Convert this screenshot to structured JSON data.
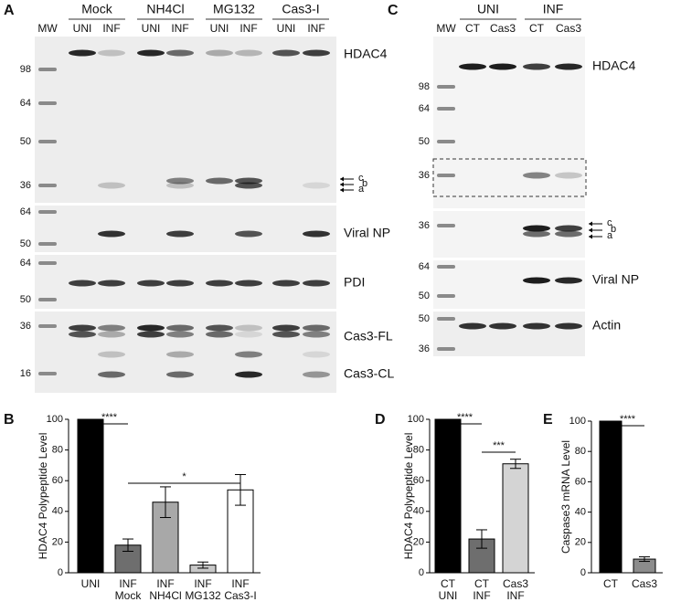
{
  "panel_a": {
    "letter": "A",
    "mw_label": "MW",
    "groups": [
      "Mock",
      "NH4Cl",
      "MG132",
      "Cas3-I"
    ],
    "lanes": [
      "UNI",
      "INF",
      "UNI",
      "INF",
      "UNI",
      "INF",
      "UNI",
      "INF"
    ],
    "blots": [
      {
        "label": "HDAC4",
        "markers": [
          "98",
          "64",
          "50",
          "36"
        ]
      },
      {
        "label": "Viral NP",
        "markers": [
          "64",
          "50"
        ]
      },
      {
        "label": "PDI",
        "markers": [
          "64",
          "50"
        ]
      },
      {
        "label": "Cas3-FL",
        "markers": [
          "36"
        ]
      },
      {
        "label": "Cas3-CL",
        "markers": [
          "16"
        ]
      }
    ],
    "band_letters": [
      "c",
      "b",
      "a"
    ]
  },
  "panel_c": {
    "letter": "C",
    "mw_label": "MW",
    "groups": [
      "UNI",
      "INF"
    ],
    "lanes": [
      "CT",
      "Cas3",
      "CT",
      "Cas3"
    ],
    "blots": [
      {
        "label": "HDAC4",
        "markers": [
          "98",
          "64",
          "50",
          "36"
        ]
      },
      {
        "markers": [
          "36"
        ]
      },
      {
        "label": "Viral NP",
        "markers": [
          "64",
          "50"
        ]
      },
      {
        "label": "Actin",
        "markers": [
          "50",
          "36"
        ]
      }
    ],
    "band_letters": [
      "c",
      "b",
      "a"
    ]
  },
  "chart_data": [
    {
      "type": "bar",
      "panel": "B",
      "y_label": "HDAC4 Polypeptide Level",
      "categories": [
        [
          "UNI"
        ],
        [
          "INF",
          "Mock"
        ],
        [
          "INF",
          "NH4Cl"
        ],
        [
          "INF",
          "MG132"
        ],
        [
          "INF",
          "Cas3-I"
        ]
      ],
      "values": [
        100,
        18,
        46,
        5,
        54
      ],
      "errors": [
        0,
        4,
        10,
        2,
        10
      ],
      "colors": [
        "#000000",
        "#6e6e6e",
        "#a8a8a8",
        "#c8c8c8",
        "#ffffff"
      ],
      "ylim": [
        0,
        100
      ],
      "yticks": [
        0,
        20,
        40,
        60,
        80,
        100
      ],
      "annotations": [
        "****",
        "*"
      ]
    },
    {
      "type": "bar",
      "panel": "D",
      "y_label": "HDAC4 Polypeptide Level",
      "categories": [
        [
          "CT",
          "UNI"
        ],
        [
          "CT",
          "INF"
        ],
        [
          "Cas3",
          "INF"
        ]
      ],
      "values": [
        100,
        22,
        71
      ],
      "errors": [
        0,
        6,
        3
      ],
      "colors": [
        "#000000",
        "#6e6e6e",
        "#d4d4d4"
      ],
      "ylim": [
        0,
        100
      ],
      "yticks": [
        0,
        20,
        40,
        60,
        80,
        100
      ],
      "annotations": [
        "****",
        "***"
      ]
    },
    {
      "type": "bar",
      "panel": "E",
      "y_label": "Caspase3 mRNA Level",
      "categories": [
        [
          "CT"
        ],
        [
          "Cas3"
        ]
      ],
      "values": [
        100,
        9
      ],
      "errors": [
        0,
        1.5
      ],
      "colors": [
        "#000000",
        "#8c8c8c"
      ],
      "ylim": [
        0,
        100
      ],
      "yticks": [
        0,
        20,
        40,
        60,
        80,
        100
      ],
      "annotations": [
        "****"
      ]
    }
  ]
}
